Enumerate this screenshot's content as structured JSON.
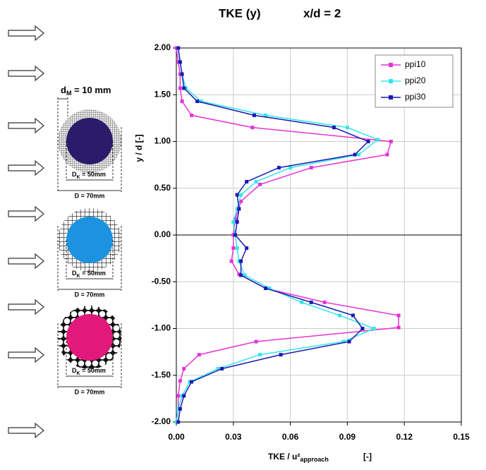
{
  "chart_data": {
    "type": "line",
    "title": "TKE (y)",
    "annotation": "x/d = 2",
    "xlabel": "TKE / u²",
    "xlabel_sub": "approach",
    "xlabel_unit": "[-]",
    "ylabel": "y / d [-]",
    "xlim": [
      0,
      0.15
    ],
    "ylim": [
      -2,
      2
    ],
    "xticks": [
      {
        "value": 0,
        "label": "0.00"
      },
      {
        "value": 0.03,
        "label": "0.03"
      },
      {
        "value": 0.06,
        "label": "0.06"
      },
      {
        "value": 0.09,
        "label": "0.09"
      },
      {
        "value": 0.12,
        "label": "0.12"
      },
      {
        "value": 0.15,
        "label": "0.15"
      }
    ],
    "yticks": [
      {
        "value": -2,
        "label": "-2.00"
      },
      {
        "value": -1.5,
        "label": "-1.50"
      },
      {
        "value": -1,
        "label": "-1.00"
      },
      {
        "value": -0.5,
        "label": "-0.50"
      },
      {
        "value": 0,
        "label": "0.00"
      },
      {
        "value": 0.5,
        "label": "0.50"
      },
      {
        "value": 1,
        "label": "1.00"
      },
      {
        "value": 1.5,
        "label": "1.50"
      },
      {
        "value": 2,
        "label": "2.00"
      }
    ],
    "grid": true,
    "legend": "upper right",
    "series": [
      {
        "name": "ppi10",
        "color": "#e633d6",
        "x": [
          0.0,
          0.001,
          0.002,
          0.002,
          0.003,
          0.008,
          0.04,
          0.113,
          0.111,
          0.071,
          0.044,
          0.034,
          0.031,
          0.03,
          0.03,
          0.029,
          0.033,
          0.047,
          0.078,
          0.117,
          0.117,
          0.042,
          0.012,
          0.004,
          0.002,
          0.001,
          0.001,
          0.0
        ],
        "y": [
          2.0,
          1.85,
          1.72,
          1.57,
          1.43,
          1.28,
          1.15,
          1.0,
          0.86,
          0.72,
          0.54,
          0.36,
          0.17,
          0.0,
          -0.14,
          -0.28,
          -0.42,
          -0.57,
          -0.72,
          -0.86,
          -0.99,
          -1.14,
          -1.28,
          -1.43,
          -1.56,
          -1.72,
          -1.86,
          -2.0
        ]
      },
      {
        "name": "ppi20",
        "color": "#33e6e6",
        "x": [
          0.001,
          0.002,
          0.003,
          0.005,
          0.013,
          0.047,
          0.09,
          0.106,
          0.096,
          0.06,
          0.042,
          0.034,
          0.032,
          0.03,
          0.031,
          0.032,
          0.033,
          0.036,
          0.049,
          0.066,
          0.086,
          0.104,
          0.088,
          0.044,
          0.022,
          0.007,
          0.003,
          0.001,
          0.0
        ],
        "y": [
          2.0,
          1.85,
          1.72,
          1.57,
          1.43,
          1.28,
          1.15,
          1.02,
          0.86,
          0.72,
          0.57,
          0.43,
          0.28,
          0.14,
          0.0,
          -0.14,
          -0.28,
          -0.43,
          -0.57,
          -0.72,
          -0.86,
          -1.0,
          -1.14,
          -1.28,
          -1.43,
          -1.57,
          -1.72,
          -1.86,
          -2.0
        ]
      },
      {
        "name": "ppi30",
        "color": "#1a1ab3",
        "x": [
          0.001,
          0.002,
          0.003,
          0.004,
          0.011,
          0.041,
          0.083,
          0.101,
          0.094,
          0.054,
          0.037,
          0.032,
          0.033,
          0.032,
          0.031,
          0.037,
          0.034,
          0.034,
          0.047,
          0.071,
          0.093,
          0.098,
          0.091,
          0.055,
          0.024,
          0.008,
          0.004,
          0.002,
          0.001
        ],
        "y": [
          2.0,
          1.85,
          1.72,
          1.57,
          1.43,
          1.28,
          1.15,
          1.0,
          0.86,
          0.72,
          0.57,
          0.43,
          0.28,
          0.14,
          0.0,
          -0.14,
          -0.28,
          -0.43,
          -0.57,
          -0.72,
          -0.86,
          -1.0,
          -1.14,
          -1.28,
          -1.43,
          -1.57,
          -1.72,
          -1.86,
          -2.0
        ]
      }
    ]
  },
  "diagram": {
    "dm_main": "d",
    "dm_sub": "M",
    "dm_rest": " = 10 mm",
    "panels": [
      {
        "inner_main": "D",
        "inner_sub": "K",
        "inner_rest": " = 50mm",
        "outer": "D = 70mm",
        "core_color": "#2b1b6b"
      },
      {
        "inner_main": "D",
        "inner_sub": "K",
        "inner_rest": " = 50mm",
        "outer": "D = 70mm",
        "core_color": "#1d93e0"
      },
      {
        "inner_main": "D",
        "inner_sub": "K",
        "inner_rest": " = 50mm",
        "outer": "D = 70mm",
        "core_color": "#e0197a"
      }
    ]
  }
}
